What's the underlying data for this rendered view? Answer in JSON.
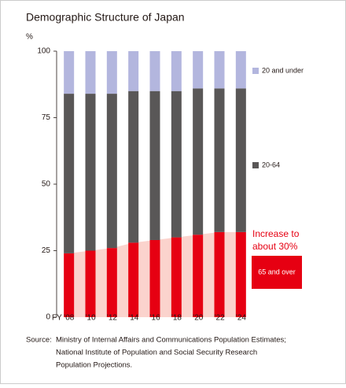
{
  "chart_data": {
    "type": "stacked-bar",
    "title": "Demographic Structure of Japan",
    "y_label": "%",
    "x_label": "FY",
    "categories": [
      "’08",
      "’10",
      "’12",
      "’14",
      "’16",
      "’18",
      "’20",
      "’22",
      "’24"
    ],
    "series": [
      {
        "name": "65 and over",
        "color": "#e60012",
        "values": [
          24,
          25,
          26,
          28,
          29,
          30,
          31,
          32,
          32
        ]
      },
      {
        "name": "20-64",
        "color": "#595757",
        "values": [
          60,
          59,
          58,
          57,
          56,
          55,
          55,
          54,
          54
        ]
      },
      {
        "name": "20 and under",
        "color": "#b3b6de",
        "values": [
          16,
          16,
          16,
          15,
          15,
          15,
          14,
          14,
          14
        ]
      }
    ],
    "ylim": [
      0,
      100
    ],
    "yticks": [
      0,
      25,
      50,
      75,
      100
    ],
    "grid": false,
    "annotation": [
      "Increase to",
      "about 30%"
    ],
    "source_label": "Source:",
    "source": [
      "Ministry of Internal Affairs and Communications Population Estimates;",
      "National Institute of Population and Social Security Research",
      "Population Projections."
    ]
  }
}
